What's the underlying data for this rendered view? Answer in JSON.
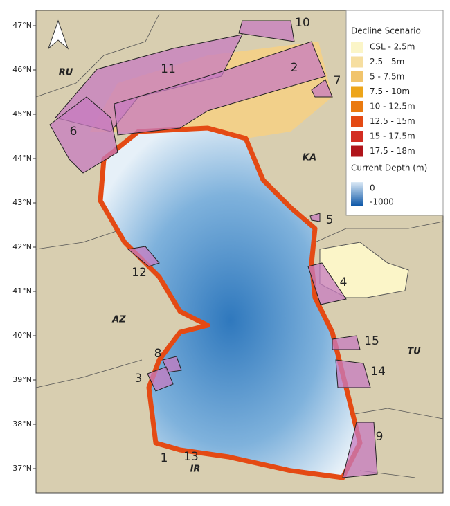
{
  "lat_labels": [
    "47°N",
    "46°N",
    "45°N",
    "44°N",
    "43°N",
    "42°N",
    "41°N",
    "40°N",
    "39°N",
    "38°N",
    "37°N"
  ],
  "countries": [
    "RU",
    "KA",
    "AZ",
    "TU",
    "IR"
  ],
  "zones": [
    "10",
    "11",
    "2",
    "7",
    "6",
    "5",
    "12",
    "4",
    "15",
    "8",
    "3",
    "14",
    "9",
    "1",
    "13"
  ],
  "legend": {
    "title": "Decline Scenario",
    "items": [
      {
        "label": "CSL - 2.5m",
        "color": "#fbf5c8"
      },
      {
        "label": "2.5 - 5m",
        "color": "#f6dea0"
      },
      {
        "label": "5 - 7.5m",
        "color": "#f1c46c"
      },
      {
        "label": "7.5 - 10m",
        "color": "#eda51a"
      },
      {
        "label": "10 - 12.5m",
        "color": "#ea7a10"
      },
      {
        "label": "12.5 - 15m",
        "color": "#e44a14"
      },
      {
        "label": "15 - 17.5m",
        "color": "#d32d22"
      },
      {
        "label": "17.5 - 18m",
        "color": "#b0141a"
      }
    ],
    "depth_title": "Current Depth (m)",
    "depth_labels": [
      "0",
      "-1000"
    ]
  }
}
